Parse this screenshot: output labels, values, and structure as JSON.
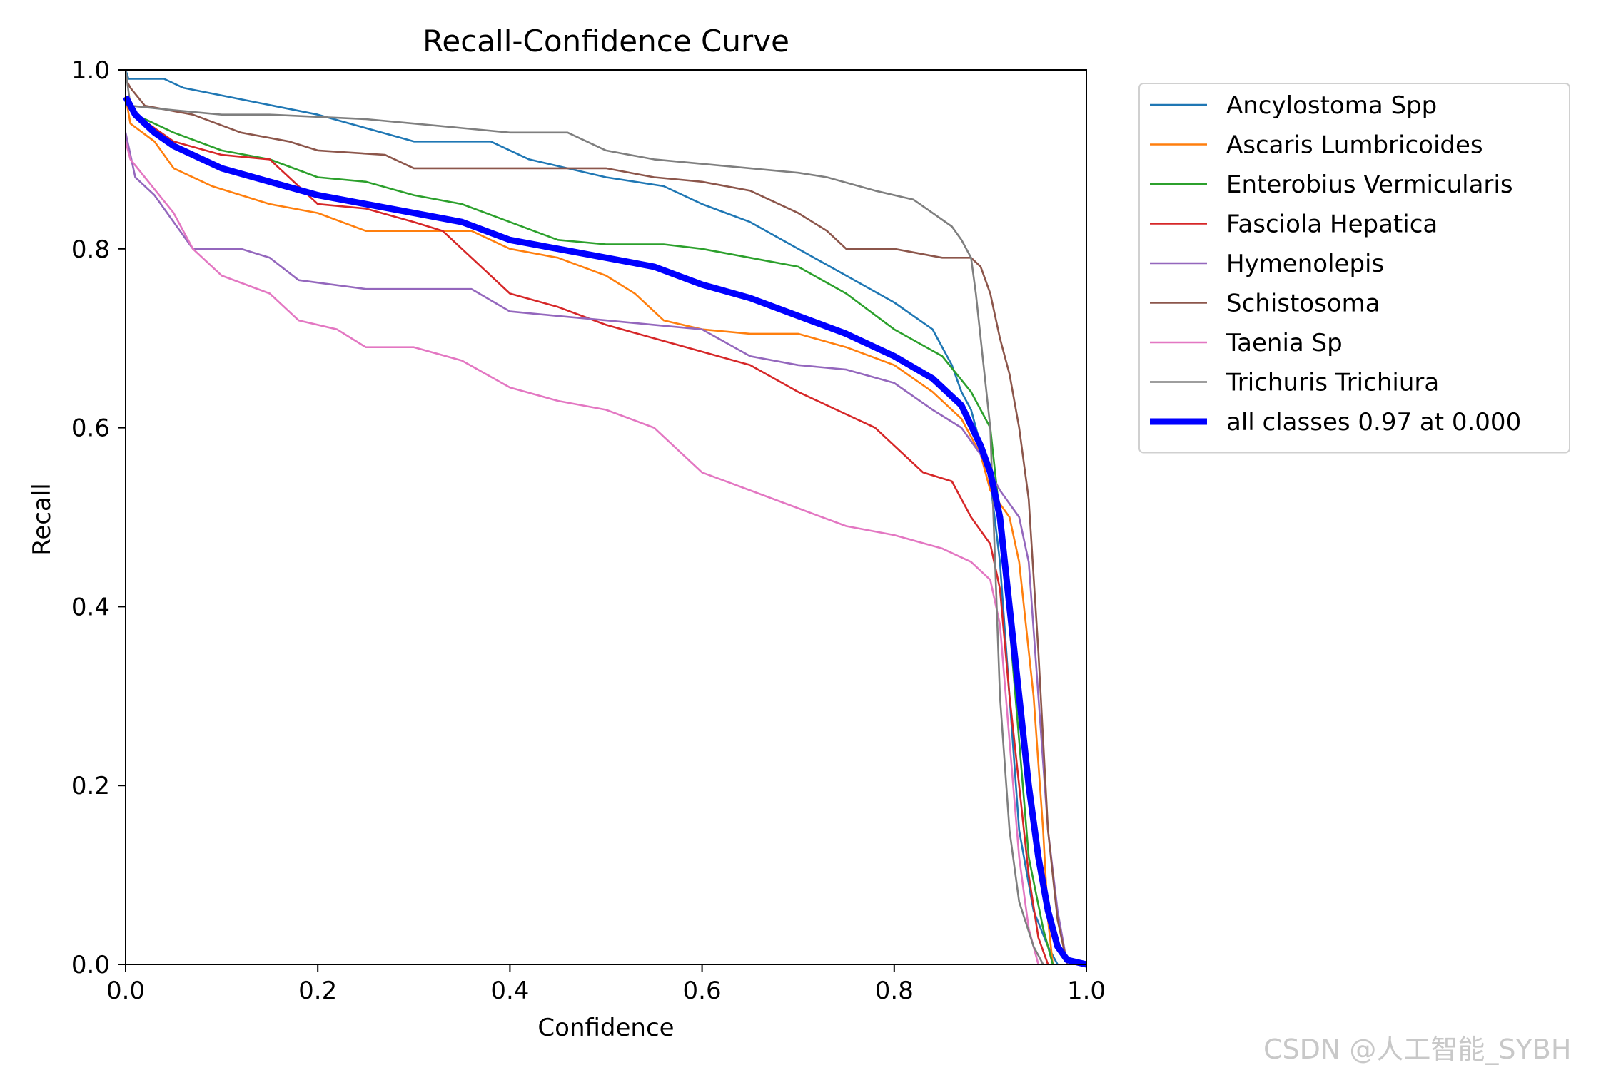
{
  "chart_data": {
    "type": "line",
    "title": "Recall-Confidence Curve",
    "xlabel": "Confidence",
    "ylabel": "Recall",
    "xlim": [
      0,
      1
    ],
    "ylim": [
      0,
      1
    ],
    "xticks": [
      "0.0",
      "0.2",
      "0.4",
      "0.6",
      "0.8",
      "1.0"
    ],
    "yticks": [
      "0.0",
      "0.2",
      "0.4",
      "0.6",
      "0.8",
      "1.0"
    ],
    "grid": false,
    "legend_position": "outside-right-top",
    "series": [
      {
        "name": "Ancylostoma Spp",
        "color": "#1f77b4",
        "points": [
          [
            0,
            1.0
          ],
          [
            0.003,
            0.99
          ],
          [
            0.04,
            0.99
          ],
          [
            0.06,
            0.98
          ],
          [
            0.2,
            0.95
          ],
          [
            0.3,
            0.92
          ],
          [
            0.38,
            0.92
          ],
          [
            0.42,
            0.9
          ],
          [
            0.5,
            0.88
          ],
          [
            0.56,
            0.87
          ],
          [
            0.6,
            0.85
          ],
          [
            0.65,
            0.83
          ],
          [
            0.7,
            0.8
          ],
          [
            0.75,
            0.77
          ],
          [
            0.8,
            0.74
          ],
          [
            0.84,
            0.71
          ],
          [
            0.86,
            0.67
          ],
          [
            0.87,
            0.64
          ],
          [
            0.88,
            0.62
          ],
          [
            0.9,
            0.54
          ],
          [
            0.91,
            0.45
          ],
          [
            0.92,
            0.3
          ],
          [
            0.93,
            0.15
          ],
          [
            0.945,
            0.06
          ],
          [
            0.96,
            0.02
          ],
          [
            0.97,
            0.0
          ]
        ]
      },
      {
        "name": "Ascaris Lumbricoides",
        "color": "#ff7f0e",
        "points": [
          [
            0,
            0.97
          ],
          [
            0.005,
            0.94
          ],
          [
            0.03,
            0.92
          ],
          [
            0.05,
            0.89
          ],
          [
            0.09,
            0.87
          ],
          [
            0.15,
            0.85
          ],
          [
            0.2,
            0.84
          ],
          [
            0.25,
            0.82
          ],
          [
            0.3,
            0.82
          ],
          [
            0.36,
            0.82
          ],
          [
            0.4,
            0.8
          ],
          [
            0.45,
            0.79
          ],
          [
            0.5,
            0.77
          ],
          [
            0.53,
            0.75
          ],
          [
            0.56,
            0.72
          ],
          [
            0.6,
            0.71
          ],
          [
            0.65,
            0.705
          ],
          [
            0.7,
            0.705
          ],
          [
            0.75,
            0.69
          ],
          [
            0.8,
            0.67
          ],
          [
            0.84,
            0.64
          ],
          [
            0.87,
            0.61
          ],
          [
            0.89,
            0.57
          ],
          [
            0.9,
            0.53
          ],
          [
            0.92,
            0.5
          ],
          [
            0.93,
            0.45
          ],
          [
            0.945,
            0.3
          ],
          [
            0.955,
            0.15
          ],
          [
            0.96,
            0.05
          ],
          [
            0.965,
            0.0
          ]
        ]
      },
      {
        "name": "Enterobius Vermicularis",
        "color": "#2ca02c",
        "points": [
          [
            0,
            0.97
          ],
          [
            0.01,
            0.95
          ],
          [
            0.05,
            0.93
          ],
          [
            0.1,
            0.91
          ],
          [
            0.15,
            0.9
          ],
          [
            0.2,
            0.88
          ],
          [
            0.25,
            0.875
          ],
          [
            0.3,
            0.86
          ],
          [
            0.35,
            0.85
          ],
          [
            0.4,
            0.83
          ],
          [
            0.45,
            0.81
          ],
          [
            0.5,
            0.805
          ],
          [
            0.56,
            0.805
          ],
          [
            0.6,
            0.8
          ],
          [
            0.65,
            0.79
          ],
          [
            0.7,
            0.78
          ],
          [
            0.75,
            0.75
          ],
          [
            0.8,
            0.71
          ],
          [
            0.85,
            0.68
          ],
          [
            0.88,
            0.64
          ],
          [
            0.9,
            0.6
          ],
          [
            0.91,
            0.5
          ],
          [
            0.92,
            0.38
          ],
          [
            0.93,
            0.25
          ],
          [
            0.94,
            0.12
          ],
          [
            0.955,
            0.04
          ],
          [
            0.965,
            0.0
          ]
        ]
      },
      {
        "name": "Fasciola Hepatica",
        "color": "#d62728",
        "points": [
          [
            0,
            0.97
          ],
          [
            0.01,
            0.95
          ],
          [
            0.05,
            0.92
          ],
          [
            0.1,
            0.905
          ],
          [
            0.15,
            0.9
          ],
          [
            0.2,
            0.85
          ],
          [
            0.25,
            0.845
          ],
          [
            0.3,
            0.83
          ],
          [
            0.33,
            0.82
          ],
          [
            0.35,
            0.8
          ],
          [
            0.38,
            0.77
          ],
          [
            0.4,
            0.75
          ],
          [
            0.45,
            0.735
          ],
          [
            0.5,
            0.715
          ],
          [
            0.55,
            0.7
          ],
          [
            0.6,
            0.685
          ],
          [
            0.65,
            0.67
          ],
          [
            0.7,
            0.64
          ],
          [
            0.74,
            0.62
          ],
          [
            0.78,
            0.6
          ],
          [
            0.8,
            0.58
          ],
          [
            0.83,
            0.55
          ],
          [
            0.86,
            0.54
          ],
          [
            0.88,
            0.5
          ],
          [
            0.9,
            0.47
          ],
          [
            0.91,
            0.42
          ],
          [
            0.92,
            0.3
          ],
          [
            0.93,
            0.2
          ],
          [
            0.94,
            0.1
          ],
          [
            0.95,
            0.03
          ],
          [
            0.96,
            0.0
          ]
        ]
      },
      {
        "name": "Hymenolepis",
        "color": "#9467bd",
        "points": [
          [
            0,
            0.93
          ],
          [
            0.01,
            0.88
          ],
          [
            0.03,
            0.86
          ],
          [
            0.05,
            0.83
          ],
          [
            0.07,
            0.8
          ],
          [
            0.12,
            0.8
          ],
          [
            0.15,
            0.79
          ],
          [
            0.18,
            0.765
          ],
          [
            0.25,
            0.755
          ],
          [
            0.3,
            0.755
          ],
          [
            0.36,
            0.755
          ],
          [
            0.4,
            0.73
          ],
          [
            0.45,
            0.725
          ],
          [
            0.5,
            0.72
          ],
          [
            0.55,
            0.715
          ],
          [
            0.6,
            0.71
          ],
          [
            0.65,
            0.68
          ],
          [
            0.7,
            0.67
          ],
          [
            0.75,
            0.665
          ],
          [
            0.8,
            0.65
          ],
          [
            0.84,
            0.62
          ],
          [
            0.87,
            0.6
          ],
          [
            0.89,
            0.57
          ],
          [
            0.9,
            0.55
          ],
          [
            0.91,
            0.53
          ],
          [
            0.93,
            0.5
          ],
          [
            0.94,
            0.45
          ],
          [
            0.95,
            0.3
          ],
          [
            0.96,
            0.15
          ],
          [
            0.97,
            0.06
          ],
          [
            0.98,
            0.0
          ]
        ]
      },
      {
        "name": "Schistosoma",
        "color": "#8c564b",
        "points": [
          [
            0,
            0.99
          ],
          [
            0.005,
            0.98
          ],
          [
            0.02,
            0.96
          ],
          [
            0.07,
            0.95
          ],
          [
            0.12,
            0.93
          ],
          [
            0.17,
            0.92
          ],
          [
            0.2,
            0.91
          ],
          [
            0.27,
            0.905
          ],
          [
            0.3,
            0.89
          ],
          [
            0.4,
            0.89
          ],
          [
            0.5,
            0.89
          ],
          [
            0.55,
            0.88
          ],
          [
            0.6,
            0.875
          ],
          [
            0.65,
            0.865
          ],
          [
            0.7,
            0.84
          ],
          [
            0.73,
            0.82
          ],
          [
            0.75,
            0.8
          ],
          [
            0.8,
            0.8
          ],
          [
            0.85,
            0.79
          ],
          [
            0.88,
            0.79
          ],
          [
            0.89,
            0.78
          ],
          [
            0.9,
            0.75
          ],
          [
            0.91,
            0.7
          ],
          [
            0.92,
            0.66
          ],
          [
            0.93,
            0.6
          ],
          [
            0.94,
            0.52
          ],
          [
            0.95,
            0.35
          ],
          [
            0.96,
            0.15
          ],
          [
            0.97,
            0.05
          ],
          [
            0.98,
            0.0
          ]
        ]
      },
      {
        "name": "Taenia Sp",
        "color": "#e377c2",
        "points": [
          [
            0,
            0.92
          ],
          [
            0.005,
            0.9
          ],
          [
            0.02,
            0.88
          ],
          [
            0.05,
            0.84
          ],
          [
            0.07,
            0.8
          ],
          [
            0.1,
            0.77
          ],
          [
            0.15,
            0.75
          ],
          [
            0.18,
            0.72
          ],
          [
            0.22,
            0.71
          ],
          [
            0.25,
            0.69
          ],
          [
            0.3,
            0.69
          ],
          [
            0.35,
            0.675
          ],
          [
            0.4,
            0.645
          ],
          [
            0.45,
            0.63
          ],
          [
            0.5,
            0.62
          ],
          [
            0.55,
            0.6
          ],
          [
            0.6,
            0.55
          ],
          [
            0.65,
            0.53
          ],
          [
            0.7,
            0.51
          ],
          [
            0.75,
            0.49
          ],
          [
            0.8,
            0.48
          ],
          [
            0.85,
            0.465
          ],
          [
            0.88,
            0.45
          ],
          [
            0.9,
            0.43
          ],
          [
            0.91,
            0.38
          ],
          [
            0.92,
            0.25
          ],
          [
            0.93,
            0.12
          ],
          [
            0.94,
            0.04
          ],
          [
            0.95,
            0.0
          ]
        ]
      },
      {
        "name": "Trichuris Trichiura",
        "color": "#7f7f7f",
        "points": [
          [
            0,
            1.0
          ],
          [
            0.005,
            0.96
          ],
          [
            0.05,
            0.955
          ],
          [
            0.1,
            0.95
          ],
          [
            0.15,
            0.95
          ],
          [
            0.25,
            0.945
          ],
          [
            0.3,
            0.94
          ],
          [
            0.35,
            0.935
          ],
          [
            0.4,
            0.93
          ],
          [
            0.46,
            0.93
          ],
          [
            0.5,
            0.91
          ],
          [
            0.55,
            0.9
          ],
          [
            0.6,
            0.895
          ],
          [
            0.65,
            0.89
          ],
          [
            0.7,
            0.885
          ],
          [
            0.73,
            0.88
          ],
          [
            0.78,
            0.865
          ],
          [
            0.82,
            0.855
          ],
          [
            0.84,
            0.84
          ],
          [
            0.86,
            0.825
          ],
          [
            0.87,
            0.81
          ],
          [
            0.88,
            0.79
          ],
          [
            0.885,
            0.75
          ],
          [
            0.89,
            0.7
          ],
          [
            0.9,
            0.6
          ],
          [
            0.905,
            0.45
          ],
          [
            0.91,
            0.3
          ],
          [
            0.92,
            0.15
          ],
          [
            0.93,
            0.07
          ],
          [
            0.945,
            0.02
          ],
          [
            0.955,
            0.0
          ]
        ]
      },
      {
        "name": "all classes 0.97 at 0.000",
        "color": "#0000ff",
        "bold": true,
        "points": [
          [
            0,
            0.97
          ],
          [
            0.01,
            0.95
          ],
          [
            0.03,
            0.93
          ],
          [
            0.05,
            0.915
          ],
          [
            0.08,
            0.9
          ],
          [
            0.1,
            0.89
          ],
          [
            0.15,
            0.875
          ],
          [
            0.2,
            0.86
          ],
          [
            0.25,
            0.85
          ],
          [
            0.3,
            0.84
          ],
          [
            0.35,
            0.83
          ],
          [
            0.4,
            0.81
          ],
          [
            0.45,
            0.8
          ],
          [
            0.5,
            0.79
          ],
          [
            0.55,
            0.78
          ],
          [
            0.6,
            0.76
          ],
          [
            0.65,
            0.745
          ],
          [
            0.7,
            0.725
          ],
          [
            0.75,
            0.705
          ],
          [
            0.8,
            0.68
          ],
          [
            0.84,
            0.655
          ],
          [
            0.87,
            0.625
          ],
          [
            0.89,
            0.58
          ],
          [
            0.9,
            0.55
          ],
          [
            0.91,
            0.5
          ],
          [
            0.92,
            0.4
          ],
          [
            0.93,
            0.3
          ],
          [
            0.94,
            0.2
          ],
          [
            0.95,
            0.12
          ],
          [
            0.96,
            0.06
          ],
          [
            0.97,
            0.02
          ],
          [
            0.98,
            0.005
          ],
          [
            1.0,
            0.0
          ]
        ]
      }
    ]
  },
  "watermark": "CSDN @人工智能_SYBH"
}
